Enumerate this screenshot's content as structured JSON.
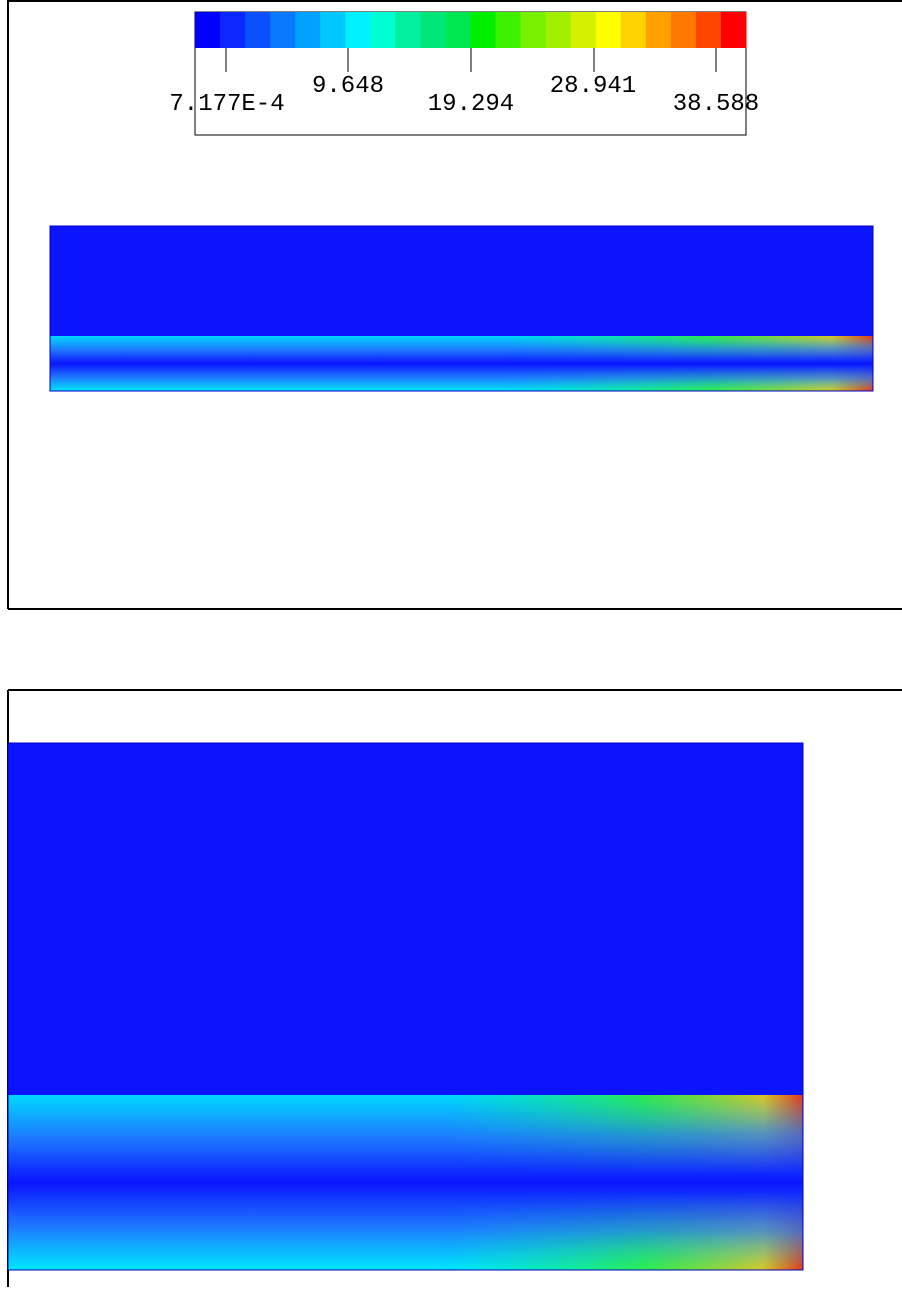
{
  "colorbar": {
    "labels": [
      "7.177E-4",
      "9.648",
      "19.294",
      "28.941",
      "38.588"
    ],
    "colors": [
      "#0000ff",
      "#0a28ff",
      "#0a50ff",
      "#0a78ff",
      "#00a0ff",
      "#00c8ff",
      "#00f0ff",
      "#00ffd2",
      "#00f0a0",
      "#00e678",
      "#00e650",
      "#00f000",
      "#3cf000",
      "#78f000",
      "#a0f000",
      "#d2f000",
      "#ffff00",
      "#ffd200",
      "#ffa000",
      "#ff7800",
      "#ff4600",
      "#ff0000"
    ]
  }
}
